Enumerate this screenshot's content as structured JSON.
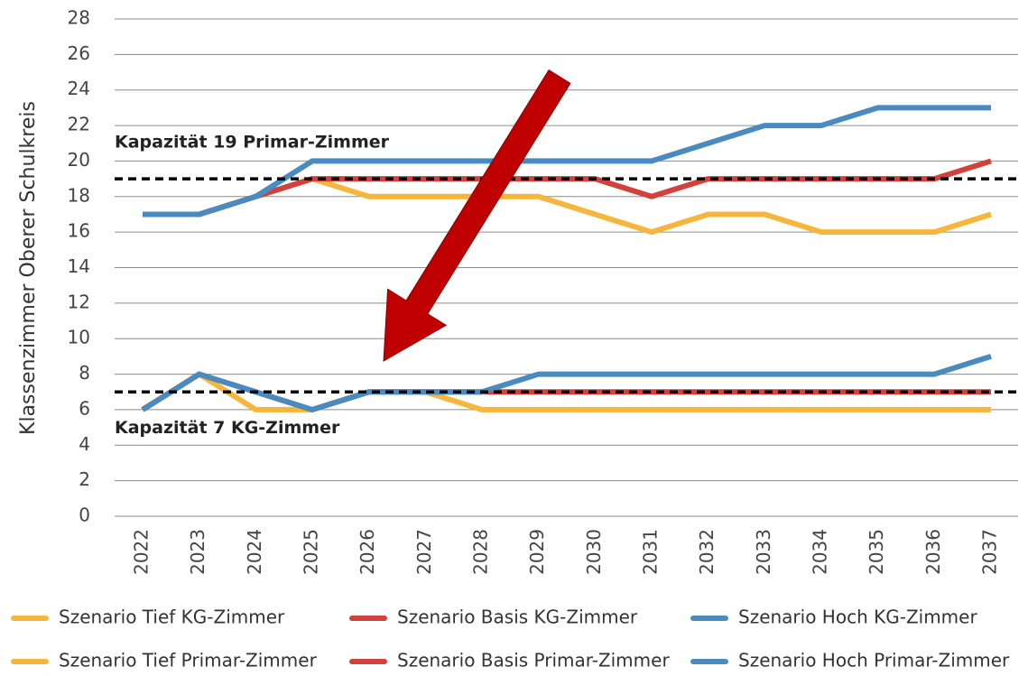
{
  "chart_data": {
    "type": "line",
    "y_label": "Klassenzimmer Oberer Schulkreis",
    "categories": [
      "2022",
      "2023",
      "2024",
      "2025",
      "2026",
      "2027",
      "2028",
      "2029",
      "2030",
      "2031",
      "2032",
      "2033",
      "2034",
      "2035",
      "2036",
      "2037"
    ],
    "series": [
      {
        "name": "Szenario Tief KG-Zimmer",
        "color": "#f6b63c",
        "values": [
          6,
          8,
          6,
          6,
          7,
          7,
          6,
          6,
          6,
          6,
          6,
          6,
          6,
          6,
          6,
          6
        ]
      },
      {
        "name": "Szenario Basis KG-Zimmer",
        "color": "#d2413c",
        "values": [
          6,
          8,
          7,
          6,
          7,
          7,
          7,
          7,
          7,
          7,
          7,
          7,
          7,
          7,
          7,
          7
        ]
      },
      {
        "name": "Szenario Hoch KG-Zimmer",
        "color": "#4a8bbf",
        "values": [
          6,
          8,
          7,
          6,
          7,
          7,
          7,
          8,
          8,
          8,
          8,
          8,
          8,
          8,
          8,
          9
        ]
      },
      {
        "name": "Szenario Tief Primar-Zimmer",
        "color": "#f6b63c",
        "values": [
          17,
          17,
          18,
          19,
          18,
          18,
          18,
          18,
          17,
          16,
          17,
          17,
          16,
          16,
          16,
          17
        ]
      },
      {
        "name": "Szenario Basis Primar-Zimmer",
        "color": "#d2413c",
        "values": [
          17,
          17,
          18,
          19,
          19,
          19,
          19,
          19,
          19,
          18,
          19,
          19,
          19,
          19,
          19,
          20
        ]
      },
      {
        "name": "Szenario Hoch Primar-Zimmer",
        "color": "#4a8bbf",
        "values": [
          17,
          17,
          18,
          20,
          20,
          20,
          20,
          20,
          20,
          20,
          21,
          22,
          22,
          23,
          23,
          23
        ]
      }
    ],
    "reference_lines": [
      {
        "value": 19,
        "label": "Kapazität 19 Primar-Zimmer"
      },
      {
        "value": 7,
        "label": "Kapazität 7 KG-Zimmer"
      }
    ],
    "ylim": [
      0,
      28
    ],
    "yticks": [
      0,
      2,
      4,
      6,
      8,
      10,
      12,
      14,
      16,
      18,
      20,
      22,
      24,
      26,
      28
    ],
    "grid": true,
    "legend": "bottom"
  }
}
